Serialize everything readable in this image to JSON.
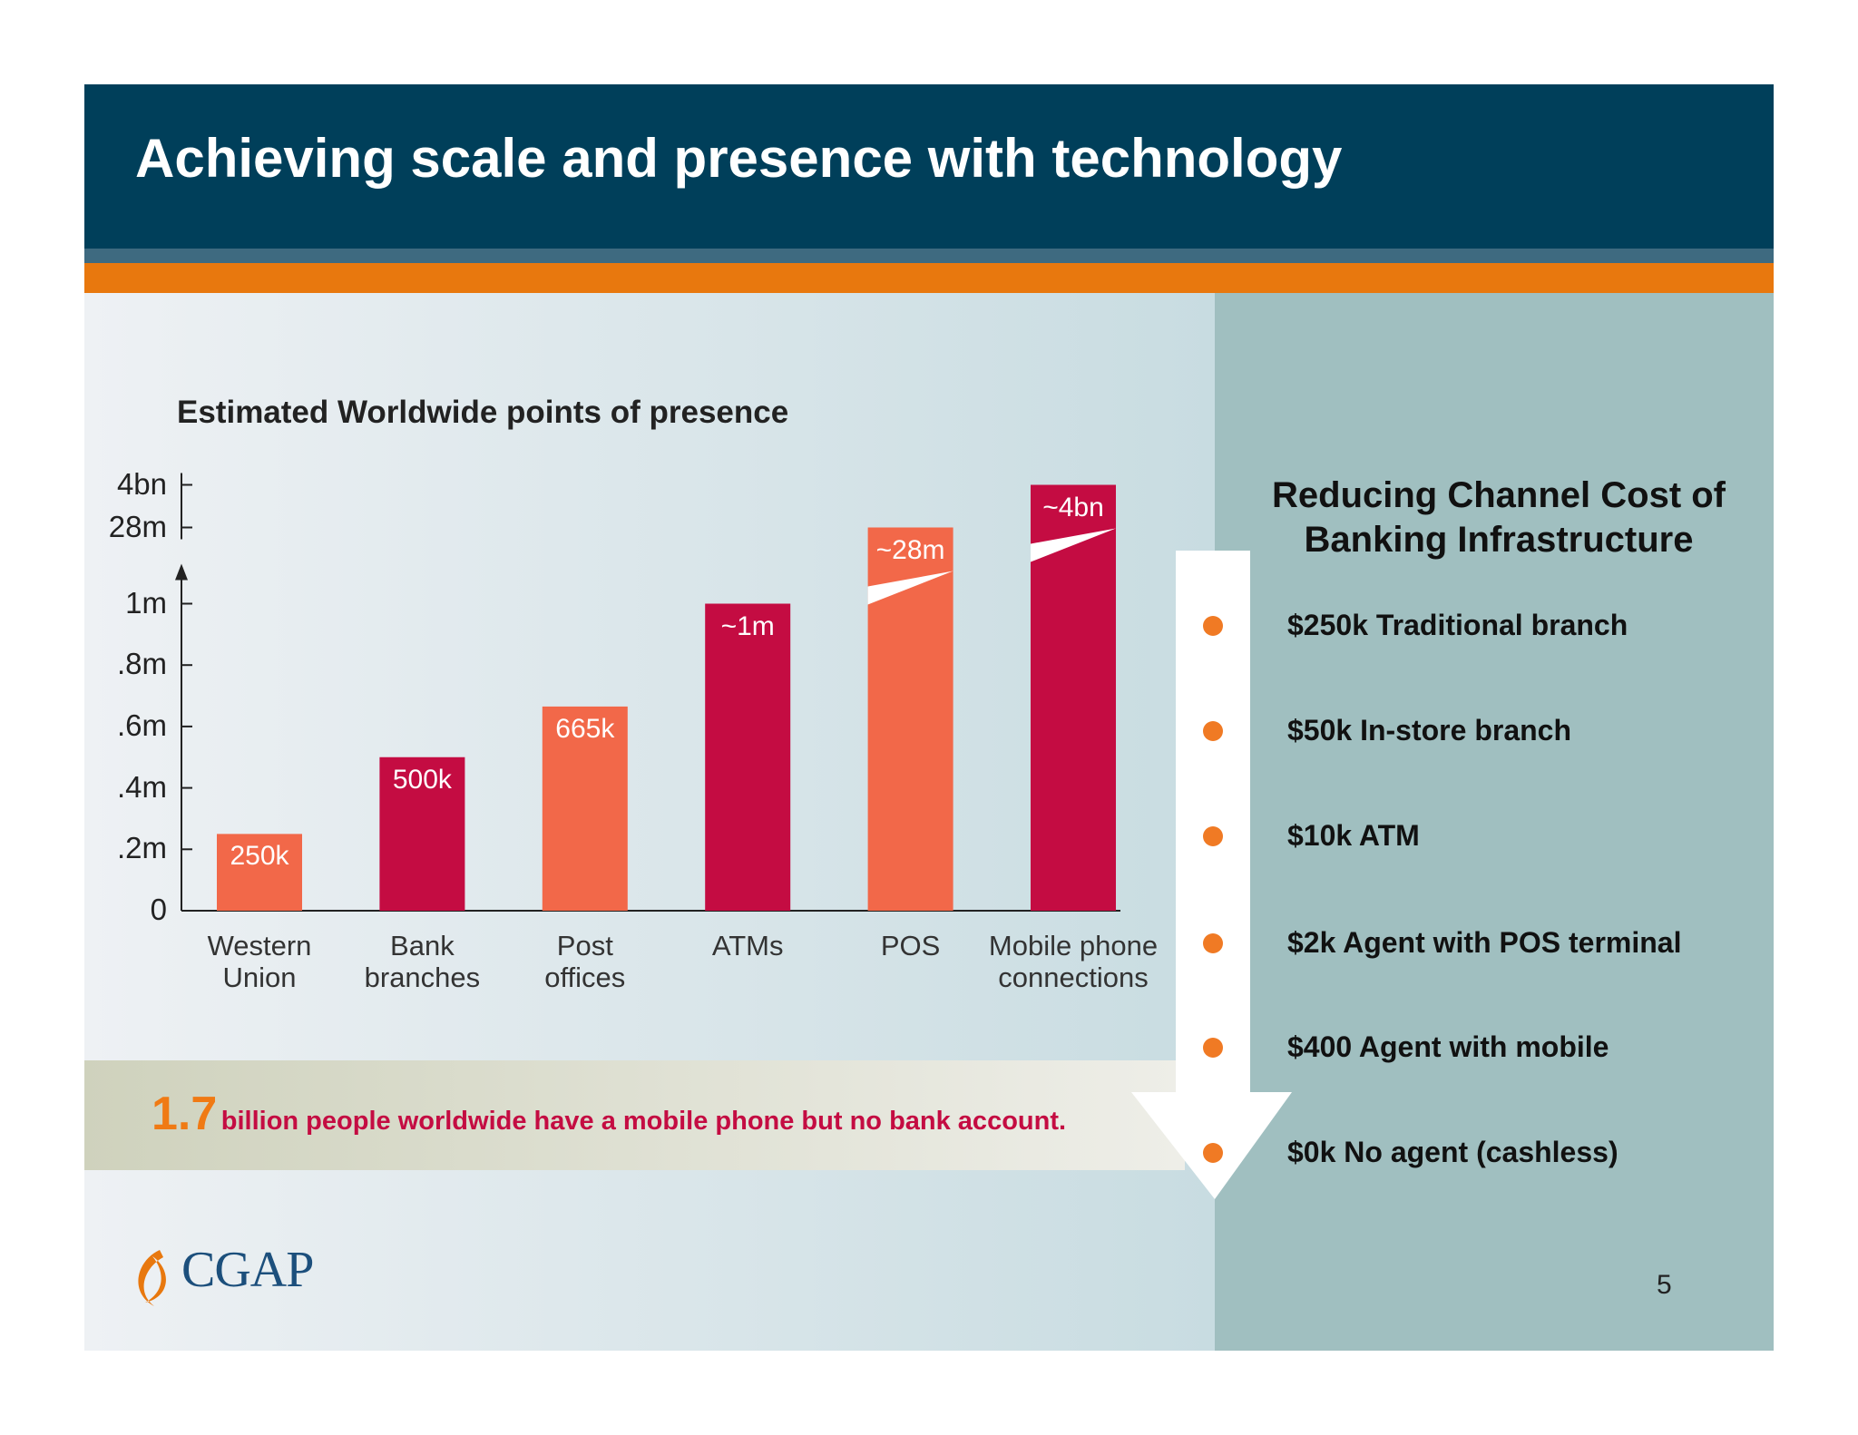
{
  "header": {
    "title": "Achieving scale and presence with technology"
  },
  "chart_data": {
    "type": "bar",
    "title": "Estimated Worldwide points of presence",
    "categories": [
      "Western\nUnion",
      "Bank\nbranches",
      "Post\noffices",
      "ATMs",
      "POS",
      "Mobile phone\nconnections"
    ],
    "values": [
      250000,
      500000,
      665000,
      1000000,
      28000000,
      4000000000
    ],
    "value_labels": [
      "250k",
      "500k",
      "665k",
      "~1m",
      "~28m",
      "~4bn"
    ],
    "colors": [
      "#f26849",
      "#c40c42",
      "#f26849",
      "#c40c42",
      "#f26849",
      "#c40c42"
    ],
    "ylim": [
      0,
      4000000000
    ],
    "yticks": [
      0,
      {
        "value": 200000,
        "label": ".2m"
      },
      {
        "value": 400000,
        "label": ".4m"
      },
      {
        "value": 600000,
        "label": ".6m"
      },
      {
        "value": 800000,
        "label": ".8m"
      },
      {
        "value": 1000000,
        "label": "1m"
      },
      {
        "value": 28000000,
        "label": "28m"
      },
      {
        "value": 4000000000,
        "label": "4bn"
      }
    ]
  },
  "callout": {
    "number": "1.7",
    "text": "billion people worldwide have a mobile phone but no bank account."
  },
  "cost_panel": {
    "title": "Reducing Channel Cost of Banking Infrastructure",
    "items": [
      "$250k Traditional branch",
      "$50k In-store branch",
      "$10k ATM",
      "$2k Agent with POS terminal",
      "$400 Agent with mobile",
      "$0k No agent (cashless)"
    ]
  },
  "logo": "CGAP",
  "page_number": "5"
}
